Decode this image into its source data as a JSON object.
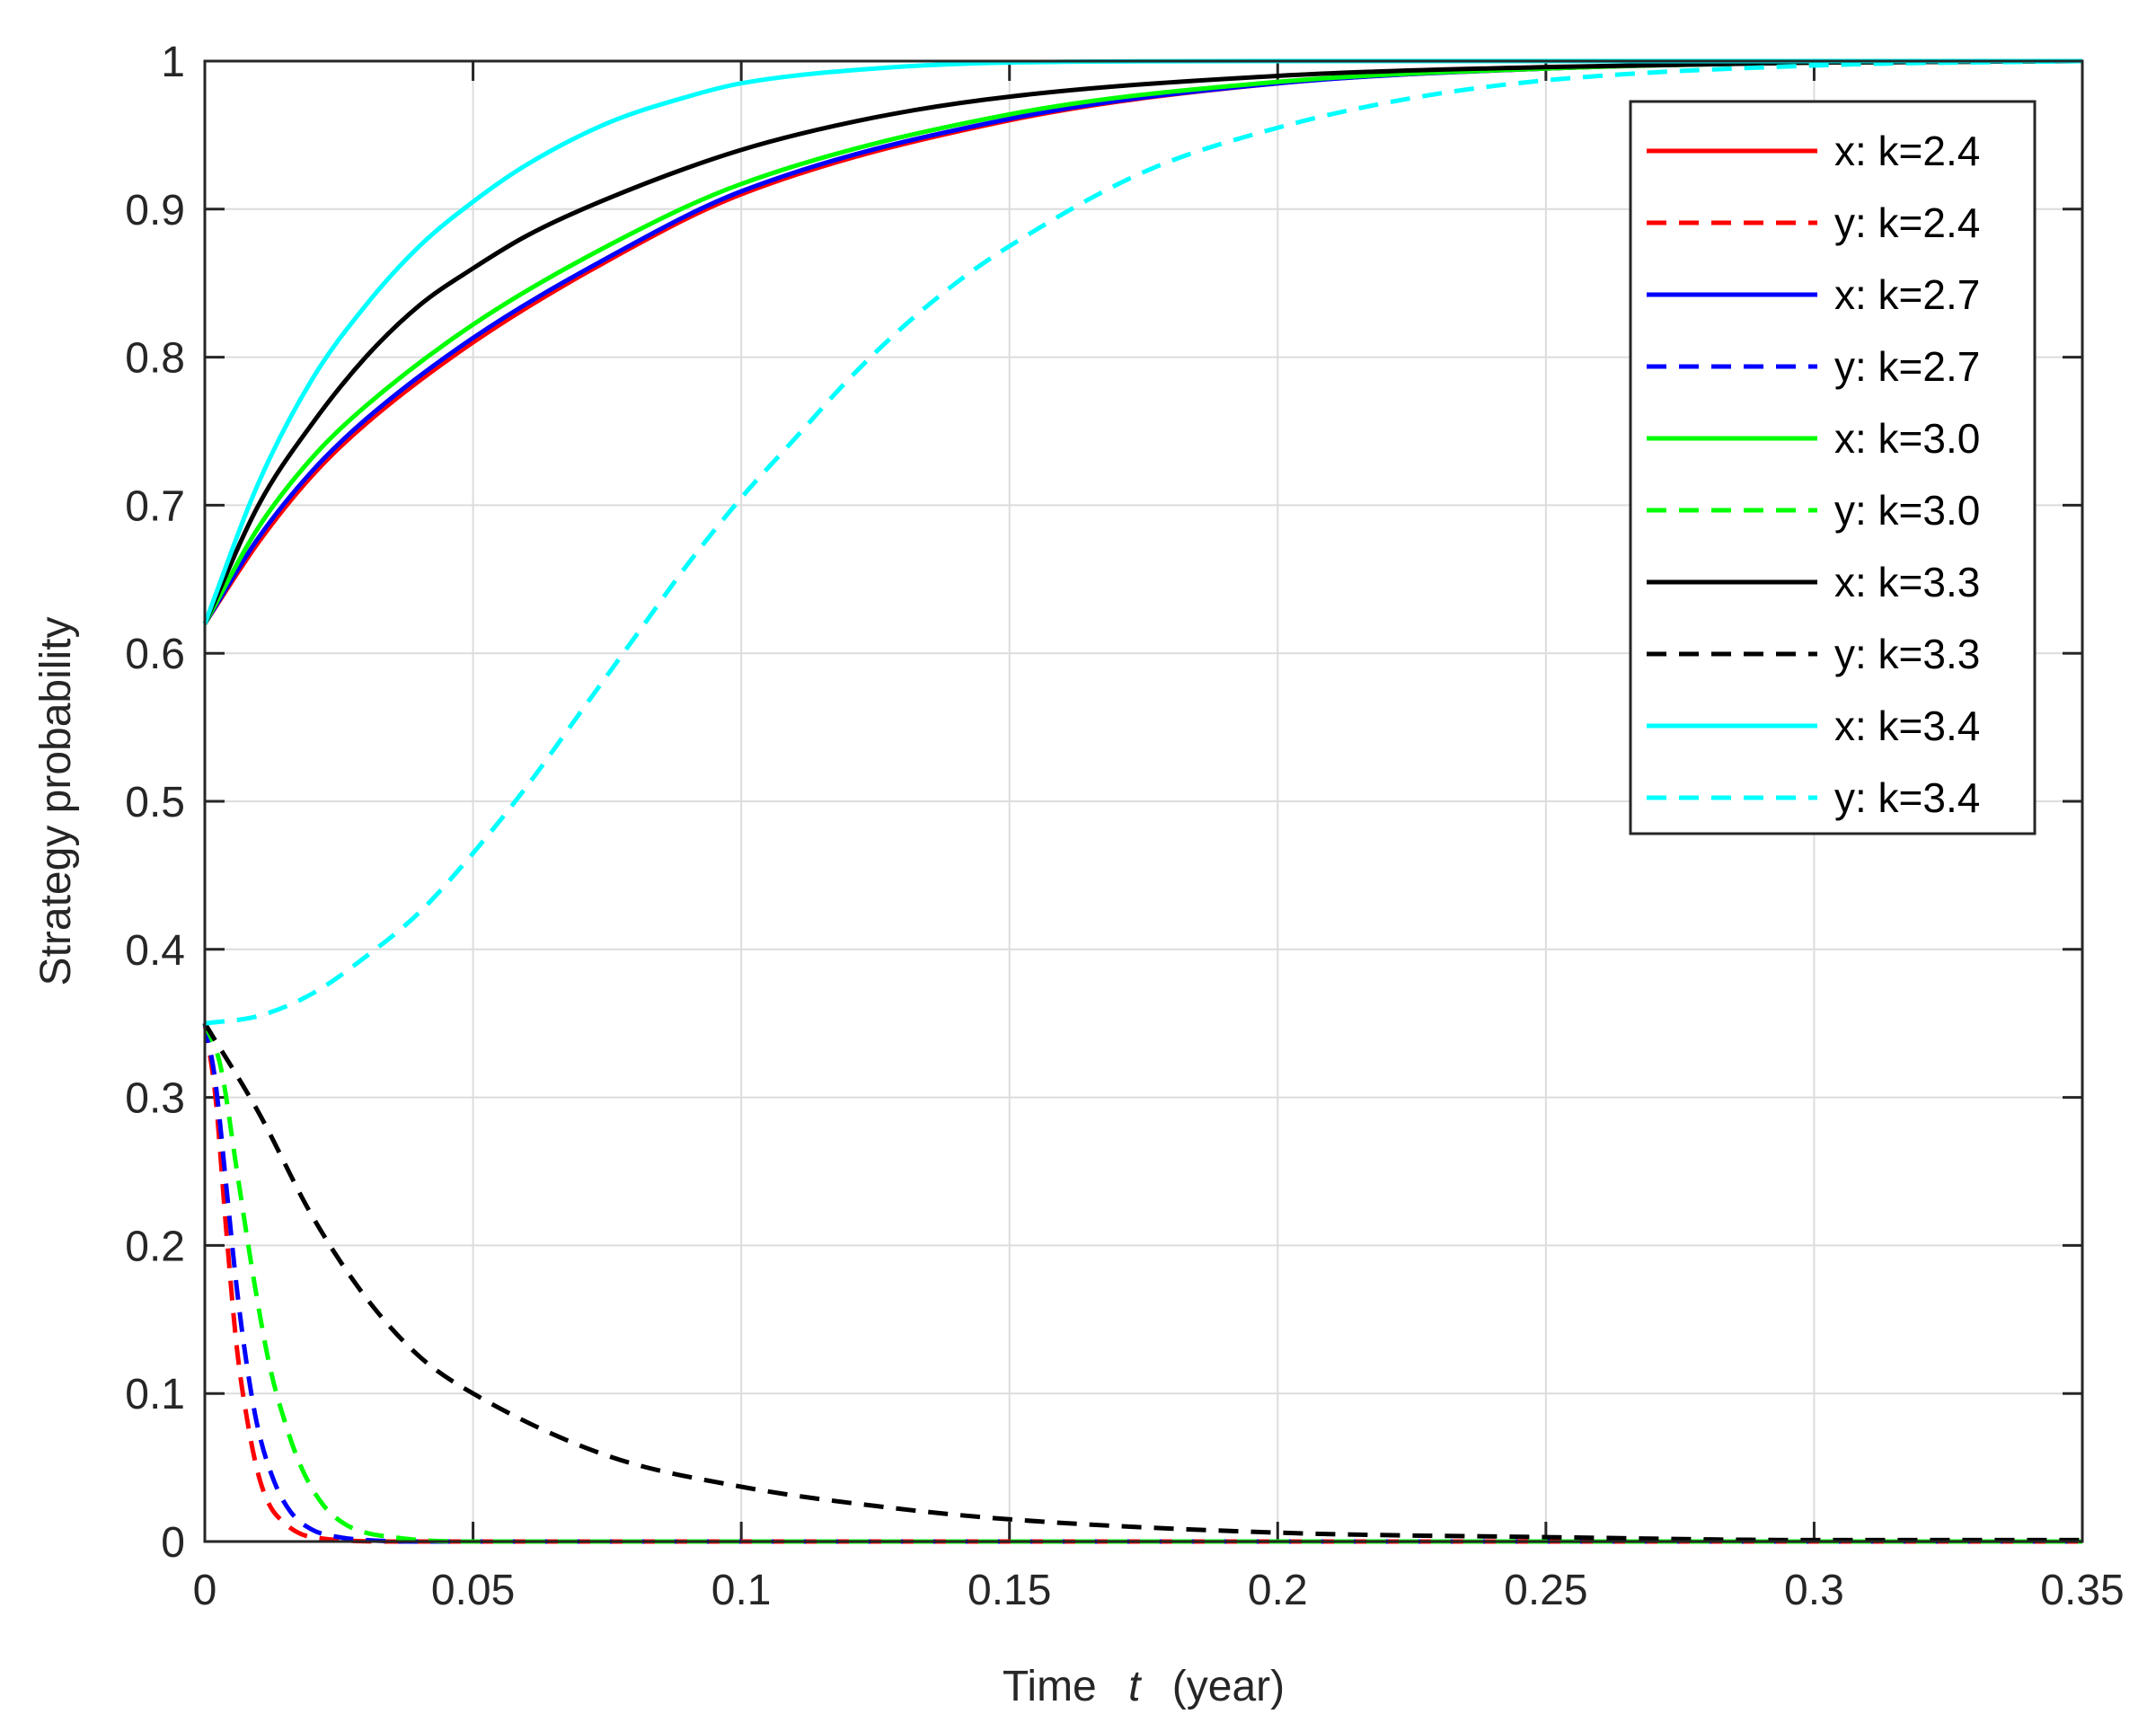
{
  "chart_data": {
    "type": "line",
    "title": "",
    "xlabel": "Time",
    "xlabel_var": "t",
    "xlabel_unit": "(year)",
    "ylabel": "Strategy probability",
    "xlim": [
      0,
      0.35
    ],
    "ylim": [
      0,
      1
    ],
    "grid": true,
    "legend_position": "top-right",
    "xticks": [
      0,
      0.05,
      0.1,
      0.15,
      0.2,
      0.25,
      0.3,
      0.35
    ],
    "xtick_labels": [
      "0",
      "0.05",
      "0.1",
      "0.15",
      "0.2",
      "0.25",
      "0.3",
      "0.35"
    ],
    "yticks": [
      0,
      0.1,
      0.2,
      0.3,
      0.4,
      0.5,
      0.6,
      0.7,
      0.8,
      0.9,
      1
    ],
    "ytick_labels": [
      "0",
      "0.1",
      "0.2",
      "0.3",
      "0.4",
      "0.5",
      "0.6",
      "0.7",
      "0.8",
      "0.9",
      "1"
    ],
    "series": [
      {
        "name": "x: k=2.4",
        "color": "#ff0000",
        "dash": false,
        "x": [
          0,
          0.01,
          0.02,
          0.03,
          0.05,
          0.075,
          0.1,
          0.15,
          0.2,
          0.25,
          0.3,
          0.35
        ],
        "y": [
          0.62,
          0.675,
          0.72,
          0.755,
          0.81,
          0.865,
          0.91,
          0.96,
          0.985,
          0.995,
          0.999,
          1.0
        ]
      },
      {
        "name": "y: k=2.4",
        "color": "#ff0000",
        "dash": true,
        "x": [
          0,
          0.002,
          0.004,
          0.006,
          0.008,
          0.01,
          0.012,
          0.015,
          0.018,
          0.022,
          0.027,
          0.035,
          0.05,
          0.1,
          0.2,
          0.35
        ],
        "y": [
          0.35,
          0.3,
          0.21,
          0.13,
          0.08,
          0.045,
          0.025,
          0.012,
          0.005,
          0.002,
          0.0005,
          0,
          0,
          0,
          0,
          0
        ]
      },
      {
        "name": "x: k=2.7",
        "color": "#0000ff",
        "dash": false,
        "x": [
          0,
          0.01,
          0.02,
          0.03,
          0.05,
          0.075,
          0.1,
          0.15,
          0.2,
          0.25,
          0.3,
          0.35
        ],
        "y": [
          0.62,
          0.678,
          0.723,
          0.758,
          0.813,
          0.867,
          0.912,
          0.961,
          0.985,
          0.995,
          0.999,
          1.0
        ]
      },
      {
        "name": "y: k=2.7",
        "color": "#0000ff",
        "dash": true,
        "x": [
          0,
          0.002,
          0.004,
          0.006,
          0.008,
          0.01,
          0.013,
          0.016,
          0.02,
          0.025,
          0.03,
          0.04,
          0.05,
          0.1,
          0.2,
          0.35
        ],
        "y": [
          0.35,
          0.31,
          0.24,
          0.17,
          0.115,
          0.075,
          0.04,
          0.02,
          0.008,
          0.003,
          0.001,
          0,
          0,
          0,
          0,
          0
        ]
      },
      {
        "name": "x: k=3.0",
        "color": "#00ff00",
        "dash": false,
        "x": [
          0,
          0.01,
          0.02,
          0.03,
          0.05,
          0.075,
          0.1,
          0.15,
          0.2,
          0.25,
          0.3,
          0.35
        ],
        "y": [
          0.62,
          0.685,
          0.732,
          0.767,
          0.822,
          0.875,
          0.917,
          0.964,
          0.986,
          0.995,
          0.999,
          1.0
        ]
      },
      {
        "name": "y: k=3.0",
        "color": "#00ff00",
        "dash": true,
        "x": [
          0,
          0.003,
          0.006,
          0.009,
          0.012,
          0.015,
          0.018,
          0.022,
          0.026,
          0.03,
          0.035,
          0.04,
          0.05,
          0.1,
          0.2,
          0.35
        ],
        "y": [
          0.35,
          0.32,
          0.25,
          0.18,
          0.12,
          0.08,
          0.05,
          0.025,
          0.012,
          0.006,
          0.003,
          0.001,
          0,
          0,
          0,
          0
        ]
      },
      {
        "name": "x: k=3.3",
        "color": "#000000",
        "dash": false,
        "x": [
          0,
          0.01,
          0.02,
          0.03,
          0.04,
          0.05,
          0.06,
          0.075,
          0.1,
          0.125,
          0.15,
          0.2,
          0.25,
          0.3,
          0.35
        ],
        "y": [
          0.62,
          0.7,
          0.755,
          0.8,
          0.835,
          0.86,
          0.882,
          0.907,
          0.94,
          0.962,
          0.976,
          0.99,
          0.996,
          0.999,
          1.0
        ]
      },
      {
        "name": "y: k=3.3",
        "color": "#000000",
        "dash": true,
        "x": [
          0,
          0.01,
          0.02,
          0.03,
          0.04,
          0.05,
          0.075,
          0.1,
          0.125,
          0.15,
          0.2,
          0.25,
          0.3,
          0.35
        ],
        "y": [
          0.35,
          0.29,
          0.22,
          0.165,
          0.125,
          0.1,
          0.058,
          0.037,
          0.024,
          0.015,
          0.006,
          0.003,
          0.001,
          0.001
        ]
      },
      {
        "name": "x: k=3.4",
        "color": "#00ffff",
        "dash": false,
        "x": [
          0,
          0.01,
          0.02,
          0.03,
          0.04,
          0.05,
          0.06,
          0.075,
          0.09,
          0.1,
          0.125,
          0.15,
          0.2,
          0.25,
          0.3,
          0.35
        ],
        "y": [
          0.62,
          0.715,
          0.785,
          0.835,
          0.875,
          0.905,
          0.93,
          0.958,
          0.976,
          0.985,
          0.995,
          0.999,
          1.0,
          1.0,
          1.0,
          1.0
        ]
      },
      {
        "name": "y: k=3.4",
        "color": "#00ffff",
        "dash": true,
        "x": [
          0,
          0.01,
          0.02,
          0.03,
          0.04,
          0.05,
          0.06,
          0.07,
          0.08,
          0.09,
          0.1,
          0.11,
          0.12,
          0.13,
          0.14,
          0.15,
          0.175,
          0.2,
          0.225,
          0.25,
          0.3,
          0.35
        ],
        "y": [
          0.35,
          0.355,
          0.37,
          0.395,
          0.425,
          0.465,
          0.51,
          0.56,
          0.61,
          0.66,
          0.705,
          0.745,
          0.785,
          0.82,
          0.85,
          0.875,
          0.925,
          0.955,
          0.975,
          0.987,
          0.997,
          1.0
        ]
      }
    ]
  }
}
